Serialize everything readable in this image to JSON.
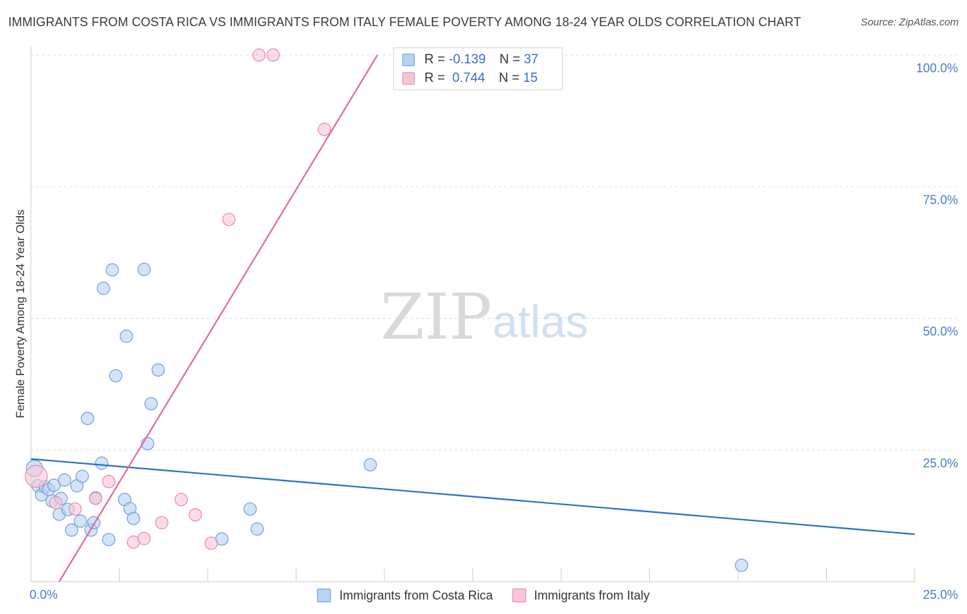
{
  "header": {
    "title": "IMMIGRANTS FROM COSTA RICA VS IMMIGRANTS FROM ITALY FEMALE POVERTY AMONG 18-24 YEAR OLDS CORRELATION CHART",
    "source": "Source: ZipAtlas.com"
  },
  "watermark": {
    "zip": "ZIP",
    "atlas": "atlas"
  },
  "stats": {
    "row1": {
      "r_label": "R = ",
      "r_value": "-0.139",
      "n_label": "N = ",
      "n_value": "37"
    },
    "row2": {
      "r_label": "R = ",
      "r_value": " 0.744",
      "n_label": "N = ",
      "n_value": "15"
    }
  },
  "legend": {
    "series1": "Immigrants from Costa Rica",
    "series2": "Immigrants from Italy"
  },
  "colors": {
    "costa_rica_fill": "#b8d2f3",
    "costa_rica_stroke": "#6f9fd8",
    "costa_rica_line": "#2b6fcb",
    "italy_fill": "#f8c5d5",
    "italy_stroke": "#e58aa8",
    "italy_line": "#e06a97"
  },
  "chart_data": {
    "type": "scatter",
    "title": "IMMIGRANTS FROM COSTA RICA VS IMMIGRANTS FROM ITALY FEMALE POVERTY AMONG 18-24 YEAR OLDS CORRELATION CHART",
    "xlabel": "",
    "ylabel": "Female Poverty Among 18-24 Year Olds",
    "xlim": [
      0,
      25
    ],
    "ylim": [
      0,
      100
    ],
    "x_tick_labels": [
      {
        "value": 0,
        "label": "0.0%"
      },
      {
        "value": 25,
        "label": "25.0%"
      }
    ],
    "y_tick_labels": [
      {
        "value": 25,
        "label": "25.0%"
      },
      {
        "value": 50,
        "label": "50.0%"
      },
      {
        "value": 75,
        "label": "75.0%"
      },
      {
        "value": 100,
        "label": "100.0%"
      }
    ],
    "grid": true,
    "legend_position": "bottom",
    "series": [
      {
        "name": "Immigrants from Costa Rica",
        "r": -0.139,
        "n": 37,
        "trend": {
          "x": [
            0,
            25
          ],
          "y": [
            23.3,
            9.0
          ]
        },
        "points": [
          {
            "x": 0.1,
            "y": 21.5,
            "size": 12
          },
          {
            "x": 0.2,
            "y": 18.2,
            "size": 9
          },
          {
            "x": 0.3,
            "y": 16.5,
            "size": 9
          },
          {
            "x": 0.4,
            "y": 18.0,
            "size": 9
          },
          {
            "x": 0.5,
            "y": 17.5,
            "size": 9
          },
          {
            "x": 0.6,
            "y": 15.3,
            "size": 9
          },
          {
            "x": 0.65,
            "y": 18.3,
            "size": 9
          },
          {
            "x": 0.8,
            "y": 12.8,
            "size": 9
          },
          {
            "x": 0.85,
            "y": 15.8,
            "size": 9
          },
          {
            "x": 0.95,
            "y": 19.3,
            "size": 9
          },
          {
            "x": 1.05,
            "y": 13.7,
            "size": 9
          },
          {
            "x": 1.15,
            "y": 9.8,
            "size": 9
          },
          {
            "x": 1.3,
            "y": 18.2,
            "size": 9
          },
          {
            "x": 1.4,
            "y": 11.5,
            "size": 9
          },
          {
            "x": 1.45,
            "y": 20.0,
            "size": 9
          },
          {
            "x": 1.6,
            "y": 31.0,
            "size": 9
          },
          {
            "x": 1.7,
            "y": 9.8,
            "size": 9
          },
          {
            "x": 1.78,
            "y": 11.2,
            "size": 9
          },
          {
            "x": 1.83,
            "y": 15.9,
            "size": 9
          },
          {
            "x": 2.0,
            "y": 22.5,
            "size": 9
          },
          {
            "x": 2.05,
            "y": 55.7,
            "size": 9
          },
          {
            "x": 2.2,
            "y": 8.0,
            "size": 9
          },
          {
            "x": 2.3,
            "y": 59.2,
            "size": 9
          },
          {
            "x": 2.4,
            "y": 39.1,
            "size": 9
          },
          {
            "x": 2.65,
            "y": 15.6,
            "size": 9
          },
          {
            "x": 2.7,
            "y": 46.6,
            "size": 9
          },
          {
            "x": 2.8,
            "y": 13.9,
            "size": 9
          },
          {
            "x": 2.9,
            "y": 12.0,
            "size": 9
          },
          {
            "x": 3.2,
            "y": 59.3,
            "size": 9
          },
          {
            "x": 3.3,
            "y": 26.2,
            "size": 9
          },
          {
            "x": 3.4,
            "y": 33.8,
            "size": 9
          },
          {
            "x": 3.6,
            "y": 40.2,
            "size": 9
          },
          {
            "x": 5.4,
            "y": 8.1,
            "size": 9
          },
          {
            "x": 6.2,
            "y": 13.8,
            "size": 9
          },
          {
            "x": 6.4,
            "y": 10.0,
            "size": 9
          },
          {
            "x": 9.6,
            "y": 22.2,
            "size": 9
          },
          {
            "x": 20.1,
            "y": 3.1,
            "size": 9
          }
        ]
      },
      {
        "name": "Immigrants from Italy",
        "r": 0.744,
        "n": 15,
        "trend": {
          "x": [
            0.8,
            9.8
          ],
          "y": [
            0,
            100
          ]
        },
        "points": [
          {
            "x": 0.15,
            "y": 20.0,
            "size": 16
          },
          {
            "x": 0.7,
            "y": 15.0,
            "size": 9
          },
          {
            "x": 1.25,
            "y": 13.8,
            "size": 9
          },
          {
            "x": 1.83,
            "y": 15.8,
            "size": 9
          },
          {
            "x": 2.2,
            "y": 19.0,
            "size": 9
          },
          {
            "x": 2.9,
            "y": 7.5,
            "size": 9
          },
          {
            "x": 3.2,
            "y": 8.2,
            "size": 9
          },
          {
            "x": 3.7,
            "y": 11.2,
            "size": 9
          },
          {
            "x": 4.25,
            "y": 15.6,
            "size": 9
          },
          {
            "x": 4.65,
            "y": 12.7,
            "size": 9
          },
          {
            "x": 5.1,
            "y": 7.3,
            "size": 9
          },
          {
            "x": 5.6,
            "y": 68.8,
            "size": 9
          },
          {
            "x": 6.45,
            "y": 100.0,
            "size": 9
          },
          {
            "x": 6.85,
            "y": 100.0,
            "size": 9
          },
          {
            "x": 8.3,
            "y": 85.9,
            "size": 9
          }
        ]
      }
    ]
  }
}
